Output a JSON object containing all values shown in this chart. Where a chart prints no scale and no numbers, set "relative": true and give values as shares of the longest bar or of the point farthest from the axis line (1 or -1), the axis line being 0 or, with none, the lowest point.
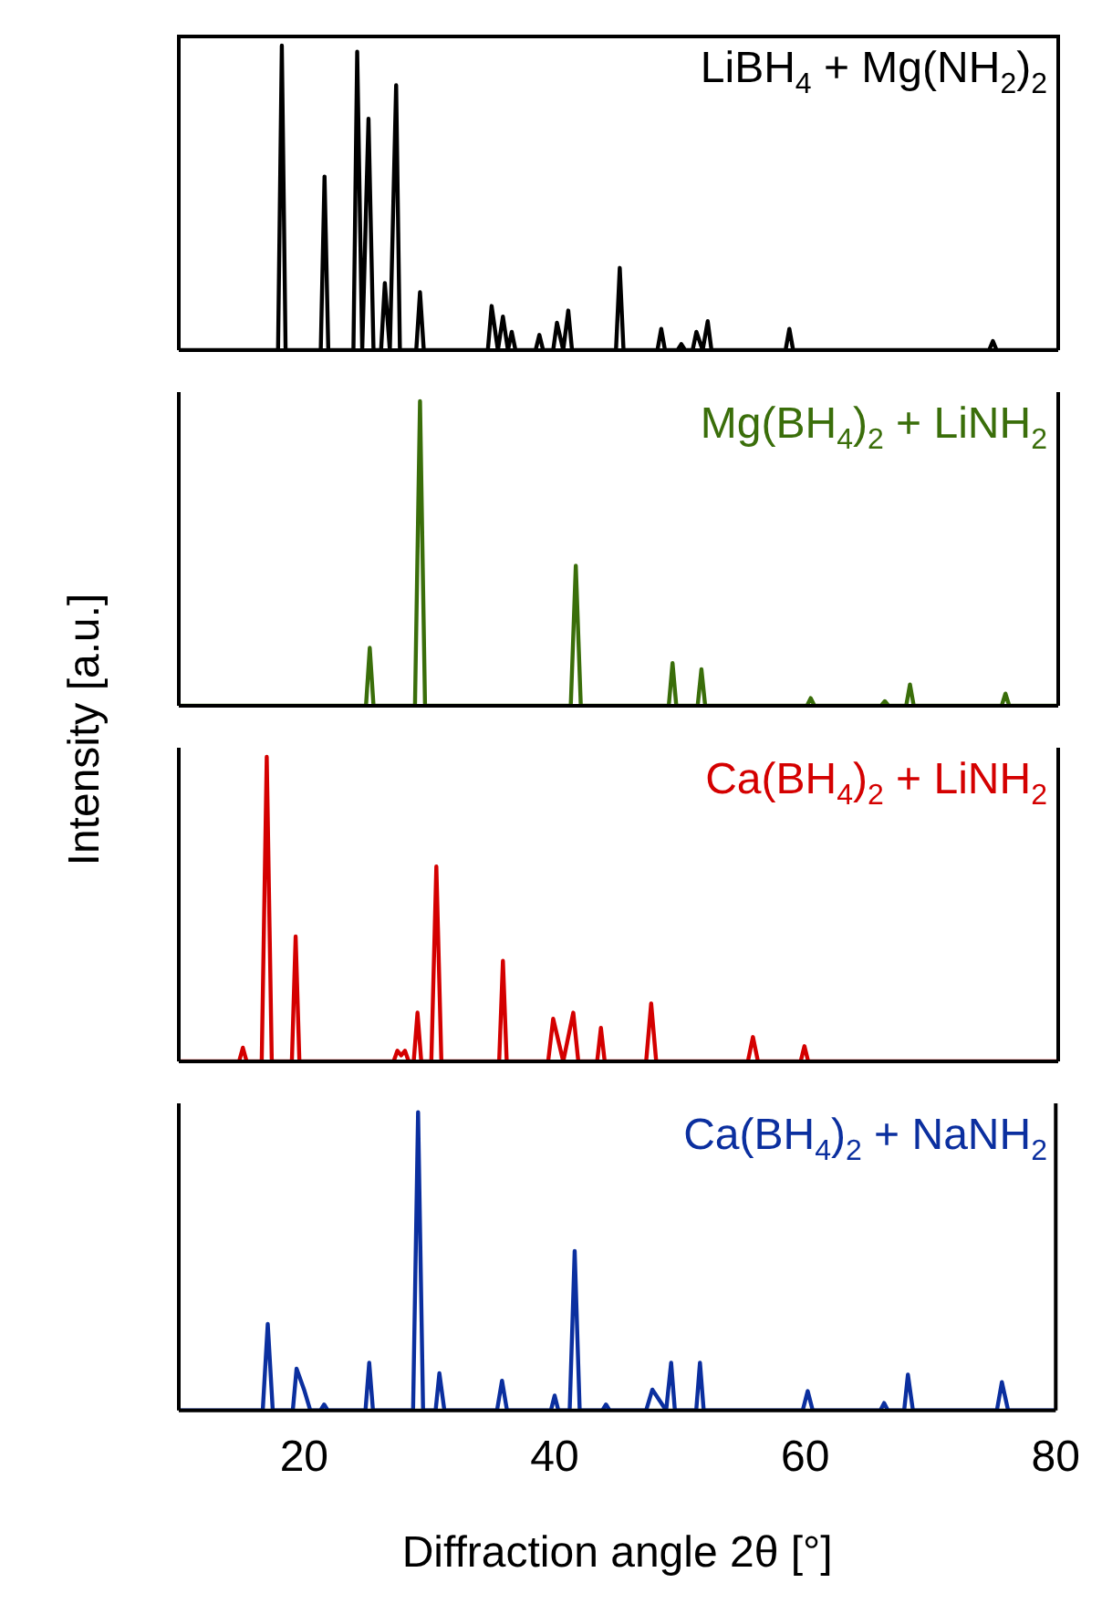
{
  "chart_data": [
    {
      "type": "line",
      "relative": true,
      "xlim": [
        10,
        80
      ],
      "xticks": [
        20,
        40,
        60,
        80
      ],
      "tick_labels": false,
      "ylabel": "Intensity [a.u.]",
      "x": [
        10,
        17.9,
        18.2,
        18.5,
        21.3,
        21.6,
        21.9,
        23.9,
        24.2,
        24.6,
        25.1,
        25.5,
        26.1,
        26.4,
        26.8,
        27.3,
        27.6,
        28.9,
        29.2,
        29.5,
        34.6,
        34.9,
        35.4,
        35.8,
        36.2,
        36.5,
        36.8,
        38.4,
        38.7,
        39.0,
        39.8,
        40.1,
        40.6,
        41.0,
        41.3,
        44.8,
        45.1,
        45.4,
        48.1,
        48.4,
        48.7,
        49.7,
        50.0,
        50.3,
        50.9,
        51.2,
        51.7,
        52.1,
        52.4,
        58.3,
        58.6,
        58.9,
        74.5,
        74.8,
        75.1,
        80
      ],
      "series": [
        {
          "name": "LiBH$_{4}$ + Mg(NH$_{2}$)$_{2}$",
          "color": "#000000",
          "values": [
            0,
            0,
            1.0,
            0,
            0,
            0.57,
            0,
            0,
            0.98,
            0,
            0.76,
            0,
            0,
            0.22,
            0,
            0.87,
            0,
            0,
            0.19,
            0,
            0,
            0.145,
            0,
            0.11,
            0,
            0.06,
            0,
            0,
            0.05,
            0,
            0,
            0.09,
            0,
            0.13,
            0,
            0,
            0.27,
            0,
            0,
            0.07,
            0,
            0,
            0.02,
            0,
            0,
            0.06,
            0,
            0.095,
            0,
            0,
            0.07,
            0,
            0,
            0.03,
            0,
            0
          ]
        }
      ]
    },
    {
      "type": "line",
      "relative": true,
      "xlim": [
        10,
        80
      ],
      "xticks": [
        20,
        40,
        60,
        80
      ],
      "tick_labels": false,
      "x": [
        10,
        24.9,
        25.2,
        25.5,
        28.8,
        29.2,
        29.6,
        41.2,
        41.6,
        42.0,
        49.0,
        49.3,
        49.6,
        51.3,
        51.6,
        51.9,
        60.0,
        60.3,
        60.6,
        65.9,
        66.2,
        66.5,
        67.9,
        68.2,
        68.5,
        75.5,
        75.8,
        76.1,
        80
      ],
      "series": [
        {
          "name": "Mg(BH$_{4}$)$_{2}$ + LiNH$_{2}$",
          "color": "#3a6e0a",
          "values": [
            0,
            0,
            0.19,
            0,
            0,
            1.0,
            0,
            0,
            0.46,
            0,
            0,
            0.14,
            0,
            0,
            0.12,
            0,
            0,
            0.025,
            0,
            0,
            0.015,
            0,
            0,
            0.07,
            0,
            0,
            0.04,
            0,
            0
          ]
        }
      ]
    },
    {
      "type": "line",
      "relative": true,
      "xlim": [
        10,
        80
      ],
      "xticks": [
        20,
        40,
        60,
        80
      ],
      "tick_labels": false,
      "x": [
        10,
        14.8,
        15.1,
        15.4,
        16.6,
        17.0,
        17.4,
        19.0,
        19.3,
        19.6,
        27.1,
        27.4,
        27.7,
        28.0,
        28.3,
        28.7,
        29.0,
        29.3,
        30.1,
        30.5,
        30.9,
        35.5,
        35.8,
        36.1,
        39.4,
        39.8,
        40.6,
        41.4,
        41.8,
        43.3,
        43.6,
        43.9,
        47.2,
        47.6,
        48.0,
        55.3,
        55.7,
        56.1,
        59.5,
        59.8,
        60.1,
        80
      ],
      "series": [
        {
          "name": "Ca(BH$_{4}$)$_{2}$ + LiNH$_{2}$",
          "color": "#d40000",
          "values": [
            0,
            0,
            0.045,
            0,
            0,
            1.0,
            0,
            0,
            0.41,
            0,
            0,
            0.035,
            0.02,
            0.035,
            0,
            0,
            0.16,
            0,
            0,
            0.64,
            0,
            0,
            0.33,
            0,
            0,
            0.14,
            0,
            0.16,
            0,
            0,
            0.11,
            0,
            0,
            0.19,
            0,
            0,
            0.08,
            0,
            0,
            0.05,
            0,
            0
          ]
        }
      ]
    },
    {
      "type": "line",
      "relative": true,
      "xlim": [
        10,
        80
      ],
      "xticks": [
        20,
        40,
        60,
        80
      ],
      "tick_labels": "x",
      "xlabel": "Diffraction angle 2θ [°]",
      "x": [
        10,
        16.7,
        17.1,
        17.5,
        19.1,
        19.4,
        20.0,
        20.5,
        21.3,
        21.6,
        21.9,
        24.9,
        25.2,
        25.5,
        28.7,
        29.1,
        29.5,
        30.5,
        30.8,
        31.2,
        35.4,
        35.8,
        36.2,
        39.7,
        40.0,
        40.3,
        41.2,
        41.6,
        42.0,
        43.8,
        44.1,
        44.4,
        47.3,
        47.8,
        48.9,
        49.3,
        49.6,
        51.3,
        51.6,
        51.9,
        59.8,
        60.2,
        60.6,
        66.0,
        66.3,
        66.6,
        67.9,
        68.2,
        68.6,
        75.3,
        75.7,
        76.2,
        80
      ],
      "series": [
        {
          "name": "Ca(BH$_{4}$)$_{2}$ + NaNH$_{2}$",
          "color": "#0b2f9f",
          "values": [
            0,
            0,
            0.29,
            0,
            0,
            0.14,
            0.07,
            0,
            0,
            0.02,
            0,
            0,
            0.16,
            0,
            0,
            1.0,
            0,
            0,
            0.125,
            0,
            0,
            0.1,
            0,
            0,
            0.05,
            0,
            0,
            0.535,
            0,
            0,
            0.02,
            0,
            0,
            0.07,
            0,
            0.16,
            0,
            0,
            0.16,
            0,
            0,
            0.065,
            0,
            0,
            0.025,
            0,
            0,
            0.12,
            0,
            0,
            0.095,
            0,
            0
          ]
        }
      ]
    }
  ]
}
